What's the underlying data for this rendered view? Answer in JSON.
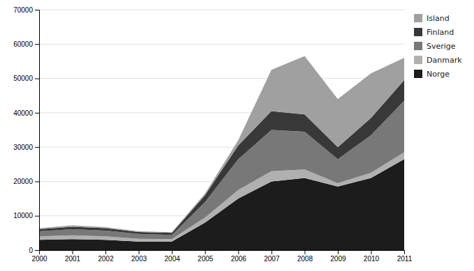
{
  "chart_data": {
    "type": "area",
    "stacked": true,
    "x": [
      2000,
      2001,
      2002,
      2003,
      2004,
      2005,
      2006,
      2007,
      2008,
      2009,
      2010,
      2011
    ],
    "series": [
      {
        "name": "Norge",
        "color": "#1c1c1c",
        "values": [
          3000,
          3200,
          3000,
          2500,
          2500,
          8000,
          15000,
          20000,
          21000,
          18500,
          21000,
          26500
        ]
      },
      {
        "name": "Danmark",
        "color": "#b0b0b0",
        "values": [
          1000,
          1100,
          1000,
          800,
          700,
          1500,
          2500,
          3000,
          2500,
          1000,
          1500,
          2000
        ]
      },
      {
        "name": "Sverige",
        "color": "#787878",
        "values": [
          1500,
          1800,
          1700,
          1400,
          1200,
          4500,
          9000,
          12000,
          11000,
          7000,
          11000,
          15000
        ]
      },
      {
        "name": "Finland",
        "color": "#383838",
        "values": [
          600,
          700,
          700,
          600,
          600,
          2000,
          4000,
          5500,
          5000,
          3500,
          5000,
          6000
        ]
      },
      {
        "name": "Island",
        "color": "#a0a0a0",
        "values": [
          300,
          400,
          300,
          200,
          200,
          500,
          1500,
          12000,
          17000,
          14000,
          13000,
          6500
        ]
      }
    ],
    "xlim": [
      2000,
      2011
    ],
    "xticks": [
      2000,
      2001,
      2002,
      2003,
      2004,
      2005,
      2006,
      2007,
      2008,
      2009,
      2010,
      2011
    ],
    "ylim": [
      0,
      70000
    ],
    "yticks": [
      0,
      10000,
      20000,
      30000,
      40000,
      50000,
      60000,
      70000
    ],
    "grid": true,
    "legend": "right"
  }
}
